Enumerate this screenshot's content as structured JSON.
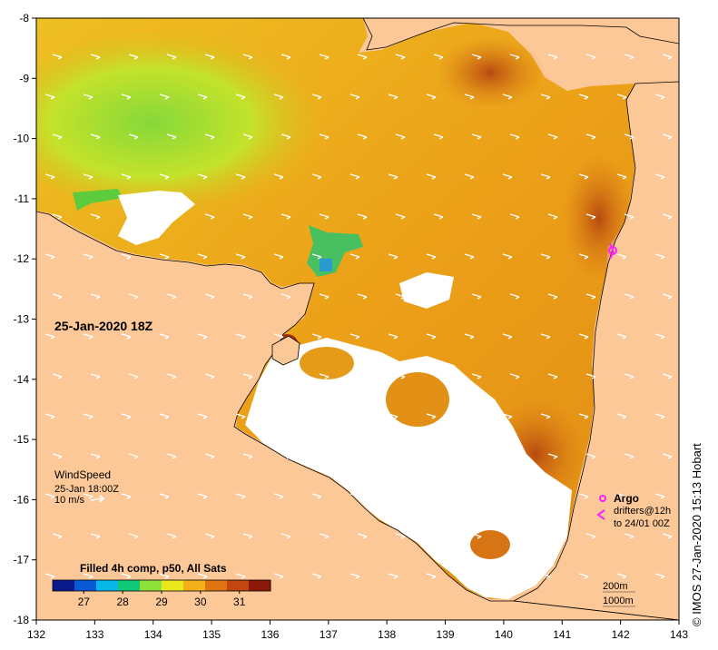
{
  "map": {
    "date_label": "25-Jan-2020 18Z",
    "x_ticks": [
      "132",
      "133",
      "134",
      "135",
      "136",
      "137",
      "138",
      "139",
      "140",
      "141",
      "142",
      "143"
    ],
    "y_ticks": [
      "-8",
      "-9",
      "-10",
      "-11",
      "-12",
      "-13",
      "-14",
      "-15",
      "-16",
      "-17",
      "-18"
    ]
  },
  "wind": {
    "title": "WindSpeed",
    "time": "25-Jan 18:00Z",
    "scale": "10 m/s"
  },
  "legend": {
    "title": "Filled 4h comp, p50, All Sats",
    "ticks": [
      "27",
      "28",
      "29",
      "30",
      "31"
    ],
    "range": [
      26.2,
      31.8
    ],
    "colors": [
      "#0a1a8c",
      "#0a5ad8",
      "#09b6e8",
      "#10c878",
      "#8ee03a",
      "#e8e81a",
      "#f2b01a",
      "#e07412",
      "#c24612",
      "#8c1808"
    ]
  },
  "argo": {
    "label": "Argo",
    "drifters_label": "drifters@12h",
    "drifters_range": "to 24/01 00Z",
    "color": "#ff22ff"
  },
  "depth": {
    "contour_200": "200m",
    "contour_1000": "1000m"
  },
  "credit": "© IMOS 27-Jan-2020 15:13 Hobart",
  "colors": {
    "land": "#fcc898",
    "cloud": "#ffffff",
    "sst_warm": "#e8960e",
    "sst_cool": "#b0e03c"
  }
}
